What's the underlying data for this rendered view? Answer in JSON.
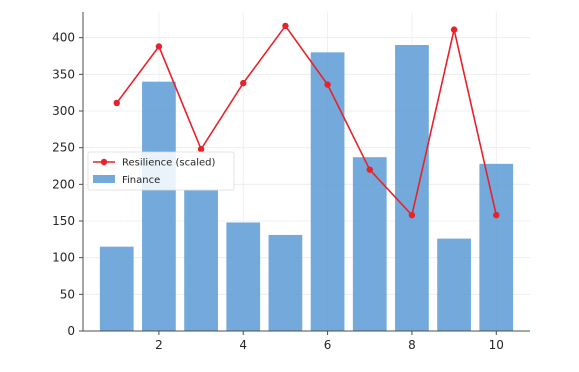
{
  "chart_data": {
    "type": "bar",
    "x": [
      1,
      2,
      3,
      4,
      5,
      6,
      7,
      8,
      9,
      10
    ],
    "series": [
      {
        "name": "Finance",
        "type": "bar",
        "color": "#5b9bd5",
        "values": [
          115,
          340,
          192,
          148,
          131,
          380,
          237,
          390,
          126,
          228
        ]
      },
      {
        "name": "Resilience (scaled)",
        "type": "line",
        "color": "#e8222b",
        "values": [
          311,
          388,
          248,
          338,
          416,
          336,
          220,
          158,
          411,
          158
        ]
      }
    ],
    "xticks": [
      2,
      4,
      6,
      8,
      10
    ],
    "yticks": [
      0,
      50,
      100,
      150,
      200,
      250,
      300,
      350,
      400
    ],
    "xlim": [
      0.2,
      10.8
    ],
    "ylim": [
      0,
      435
    ],
    "grid": true,
    "legend_position": "center-left",
    "title": "",
    "xlabel": "",
    "ylabel": ""
  }
}
